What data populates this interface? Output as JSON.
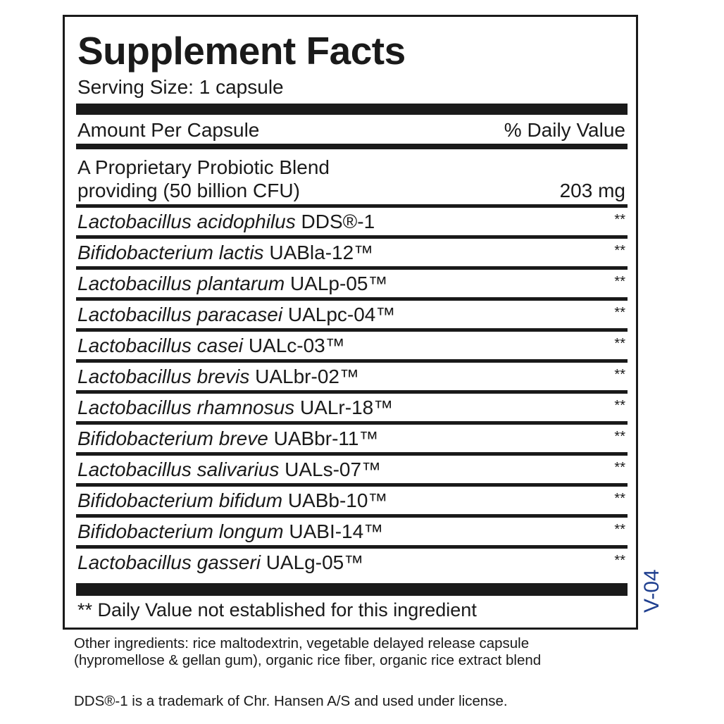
{
  "title": "Supplement Facts",
  "serving_size": "Serving Size: 1 capsule",
  "header": {
    "amount": "Amount Per Capsule",
    "daily_value": "% Daily Value"
  },
  "blend": {
    "line1": "A Proprietary Probiotic Blend",
    "line2": "providing (50 billion CFU)",
    "amount": "203 mg"
  },
  "ingredients": [
    {
      "species": "Lactobacillus acidophilus",
      "strain": "DDS®-1",
      "dv": "**"
    },
    {
      "species": "Bifidobacterium lactis",
      "strain": "UABla-12™",
      "dv": "**"
    },
    {
      "species": "Lactobacillus plantarum",
      "strain": "UALp-05™",
      "dv": "**"
    },
    {
      "species": "Lactobacillus paracasei",
      "strain": "UALpc-04™",
      "dv": "**"
    },
    {
      "species": "Lactobacillus casei",
      "strain": "UALc-03™",
      "dv": "**"
    },
    {
      "species": "Lactobacillus brevis",
      "strain": "UALbr-02™",
      "dv": "**"
    },
    {
      "species": "Lactobacillus rhamnosus",
      "strain": "UALr-18™",
      "dv": "**"
    },
    {
      "species": "Bifidobacterium breve",
      "strain": "UABbr-11™",
      "dv": "**"
    },
    {
      "species": "Lactobacillus salivarius",
      "strain": "UALs-07™",
      "dv": "**"
    },
    {
      "species": "Bifidobacterium bifidum",
      "strain": "UABb-10™",
      "dv": "**"
    },
    {
      "species": "Bifidobacterium longum",
      "strain": "UABI-14™",
      "dv": "**"
    },
    {
      "species": "Lactobacillus gasseri",
      "strain": "UALg-05™",
      "dv": "**"
    }
  ],
  "footnote": "** Daily Value not established for this ingredient",
  "other_ingredients": "Other ingredients: rice maltodextrin, vegetable delayed release capsule (hypromellose & gellan gum), organic rice fiber, organic rice extract blend",
  "trademark": "DDS®-1 is a trademark of Chr. Hansen A/S and used under license.",
  "version": "V-04",
  "colors": {
    "text": "#1a1a1a",
    "version": "#1f3f8f"
  }
}
